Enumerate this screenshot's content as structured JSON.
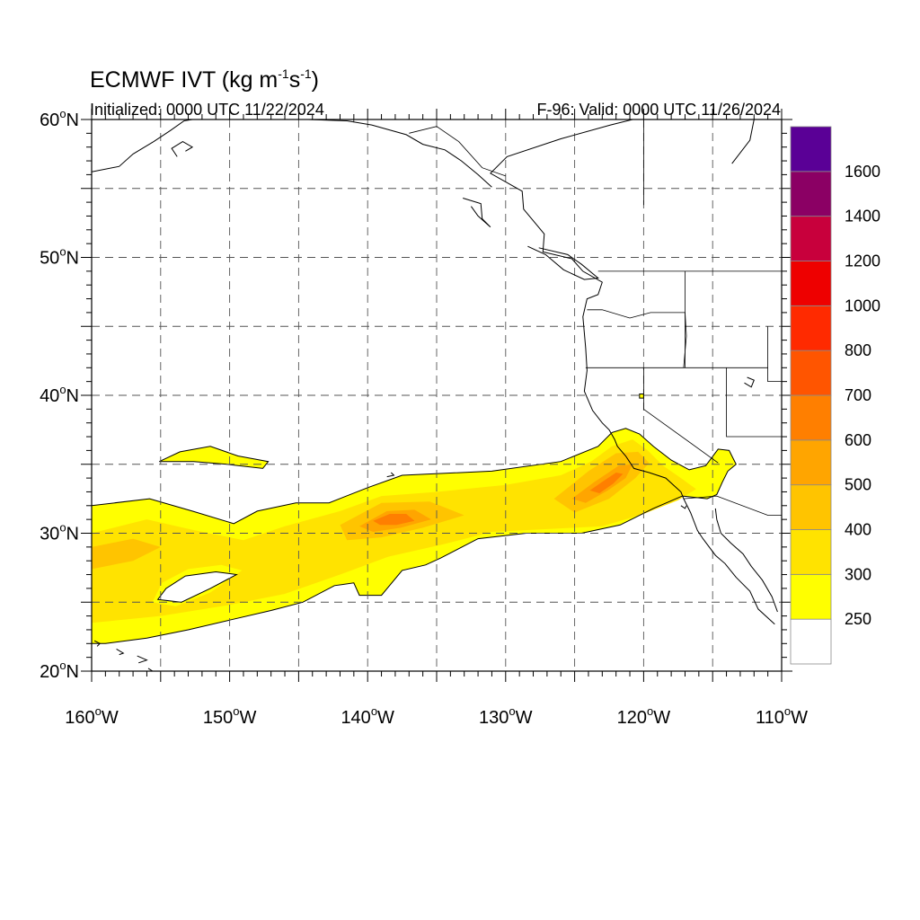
{
  "title": {
    "main": "ECMWF IVT (kg m",
    "exp1": "-1",
    "mid": "s",
    "exp2": "-1",
    "end": ")"
  },
  "initialized": "Initialized: 0000 UTC 11/22/2024",
  "valid": "F-96: Valid: 0000 UTC 11/26/2024",
  "map_extent": {
    "lon_min": -160,
    "lon_max": -110,
    "lat_min": 20,
    "lat_max": 60
  },
  "lat_ticks": [
    {
      "lat": 60,
      "label": "60"
    },
    {
      "lat": 50,
      "label": "50"
    },
    {
      "lat": 40,
      "label": "40"
    },
    {
      "lat": 30,
      "label": "30"
    },
    {
      "lat": 20,
      "label": "20"
    }
  ],
  "lon_ticks": [
    {
      "lon": -160,
      "label": "160"
    },
    {
      "lon": -150,
      "label": "150"
    },
    {
      "lon": -140,
      "label": "140"
    },
    {
      "lon": -130,
      "label": "130"
    },
    {
      "lon": -120,
      "label": "120"
    },
    {
      "lon": -110,
      "label": "110"
    }
  ],
  "lat_suffix": "N",
  "lon_suffix": "W",
  "degree": "o",
  "colorbar": {
    "levels": [
      {
        "label": "",
        "color": "#ffffff"
      },
      {
        "label": "250",
        "color": "#ffff00"
      },
      {
        "label": "300",
        "color": "#ffe300"
      },
      {
        "label": "400",
        "color": "#ffc400"
      },
      {
        "label": "500",
        "color": "#ffa500"
      },
      {
        "label": "600",
        "color": "#ff7f00"
      },
      {
        "label": "700",
        "color": "#ff5500"
      },
      {
        "label": "800",
        "color": "#ff2a00"
      },
      {
        "label": "1000",
        "color": "#ee0000"
      },
      {
        "label": "1200",
        "color": "#c8003c"
      },
      {
        "label": "1400",
        "color": "#8b0064"
      },
      {
        "label": "1600",
        "color": "#5a0096"
      }
    ]
  },
  "ivt_field": [
    {
      "level": 250,
      "polygons": [
        [
          [
            -160,
            32
          ],
          [
            -155.8,
            32.5
          ],
          [
            -152.7,
            31.6
          ],
          [
            -149.7,
            30.7
          ],
          [
            -148,
            31.6
          ],
          [
            -145.2,
            32.2
          ],
          [
            -142.8,
            32.2
          ],
          [
            -140,
            33.3
          ],
          [
            -137.5,
            34.2
          ],
          [
            -131,
            34.5
          ],
          [
            -126,
            35.2
          ],
          [
            -123.3,
            36.3
          ],
          [
            -122.3,
            37.3
          ],
          [
            -121.3,
            37.6
          ],
          [
            -120.3,
            37.2
          ],
          [
            -119.3,
            36.3
          ],
          [
            -118,
            35.3
          ],
          [
            -116.7,
            34.6
          ],
          [
            -115.5,
            34.9
          ],
          [
            -114.6,
            36.1
          ],
          [
            -113.8,
            36.0
          ],
          [
            -113.3,
            35.0
          ],
          [
            -113.9,
            34.5
          ],
          [
            -114.3,
            33.7
          ],
          [
            -114.7,
            32.8
          ],
          [
            -115.4,
            32.5
          ],
          [
            -117.2,
            32.7
          ],
          [
            -119.3,
            31.8
          ],
          [
            -121.7,
            30.6
          ],
          [
            -124.5,
            30
          ],
          [
            -128.5,
            30
          ],
          [
            -132,
            29.6
          ],
          [
            -134.7,
            28.2
          ],
          [
            -135.8,
            27.7
          ],
          [
            -137.5,
            27.3
          ],
          [
            -138.5,
            26.1
          ],
          [
            -139,
            25.5
          ],
          [
            -140.6,
            25.5
          ],
          [
            -141,
            26.4
          ],
          [
            -142.4,
            26.2
          ],
          [
            -144.7,
            25.0
          ],
          [
            -147,
            24.4
          ],
          [
            -150,
            23.7
          ],
          [
            -153,
            23.0
          ],
          [
            -156,
            22.4
          ],
          [
            -159,
            22
          ],
          [
            -160,
            22
          ]
        ],
        [
          [
            -155.1,
            35.2
          ],
          [
            -153.6,
            35.9
          ],
          [
            -151.4,
            36.3
          ],
          [
            -149.4,
            35.6
          ],
          [
            -147.2,
            35.2
          ],
          [
            -147.6,
            34.7
          ],
          [
            -150.2,
            35.0
          ],
          [
            -152.6,
            35.2
          ]
        ],
        [
          [
            -120.3,
            40.1
          ],
          [
            -120.0,
            40.1
          ],
          [
            -120.0,
            39.8
          ],
          [
            -120.3,
            39.8
          ]
        ]
      ],
      "holes": [
        [
          [
            -154.6,
            26.0
          ],
          [
            -153.2,
            26.9
          ],
          [
            -151.0,
            27.2
          ],
          [
            -149.5,
            27.0
          ],
          [
            -151.4,
            26.0
          ],
          [
            -153.5,
            25.0
          ],
          [
            -155.2,
            25.2
          ]
        ]
      ]
    },
    {
      "level": 300,
      "polygons": [
        [
          [
            -160,
            30
          ],
          [
            -156,
            31
          ],
          [
            -152.5,
            30.2
          ],
          [
            -149,
            29.5
          ],
          [
            -146,
            30.5
          ],
          [
            -142,
            31.6
          ],
          [
            -139,
            32.7
          ],
          [
            -135,
            33
          ],
          [
            -130,
            33.5
          ],
          [
            -126,
            34.2
          ],
          [
            -123.8,
            35.2
          ],
          [
            -122.3,
            36.3
          ],
          [
            -120.8,
            36.8
          ],
          [
            -119.7,
            36
          ],
          [
            -118.6,
            34.9
          ],
          [
            -117.3,
            34.0
          ],
          [
            -116.2,
            33.2
          ],
          [
            -117.5,
            32.4
          ],
          [
            -120,
            31.4
          ],
          [
            -123,
            30.5
          ],
          [
            -127,
            30.3
          ],
          [
            -131,
            30.1
          ],
          [
            -134.5,
            29.2
          ],
          [
            -138.5,
            28.3
          ],
          [
            -142,
            27.0
          ],
          [
            -146,
            25.6
          ],
          [
            -150,
            24.8
          ],
          [
            -155,
            24.0
          ],
          [
            -160,
            23.5
          ]
        ]
      ],
      "holes": [
        [
          [
            -154.9,
            26.4
          ],
          [
            -153.0,
            27.4
          ],
          [
            -150.6,
            27.7
          ],
          [
            -149.1,
            27.3
          ],
          [
            -151.4,
            25.7
          ],
          [
            -153.9,
            24.7
          ],
          [
            -155.6,
            25.0
          ]
        ]
      ]
    },
    {
      "level": 400,
      "polygons": [
        [
          [
            -160,
            29
          ],
          [
            -157,
            29.6
          ],
          [
            -155,
            29
          ],
          [
            -157,
            28
          ],
          [
            -160,
            27.4
          ]
        ],
        [
          [
            -142,
            30.6
          ],
          [
            -139,
            32.2
          ],
          [
            -135.5,
            32.3
          ],
          [
            -133,
            31.3
          ],
          [
            -136,
            30.4
          ],
          [
            -139,
            29.7
          ],
          [
            -141.5,
            29.5
          ]
        ],
        [
          [
            -126.5,
            32.5
          ],
          [
            -124,
            34.5
          ],
          [
            -122,
            35.8
          ],
          [
            -120.4,
            35.9
          ],
          [
            -119.6,
            35.1
          ],
          [
            -120.6,
            34.0
          ],
          [
            -122.5,
            32.5
          ],
          [
            -125,
            31.5
          ]
        ]
      ],
      "holes": []
    },
    {
      "level": 500,
      "polygons": [
        [
          [
            -140.6,
            30.5
          ],
          [
            -138.6,
            31.6
          ],
          [
            -136.6,
            31.7
          ],
          [
            -135.4,
            31.0
          ],
          [
            -137.6,
            30.4
          ],
          [
            -139.6,
            30.1
          ]
        ],
        [
          [
            -125.2,
            32.5
          ],
          [
            -123.6,
            33.7
          ],
          [
            -121.8,
            34.9
          ],
          [
            -120.8,
            35.0
          ],
          [
            -121.3,
            34.0
          ],
          [
            -122.6,
            33.1
          ],
          [
            -124.2,
            32.2
          ]
        ]
      ],
      "holes": []
    },
    {
      "level": 600,
      "polygons": [
        [
          [
            -139.6,
            30.9
          ],
          [
            -138.4,
            31.4
          ],
          [
            -137.2,
            31.4
          ],
          [
            -136.6,
            30.9
          ],
          [
            -137.9,
            30.6
          ],
          [
            -139.1,
            30.6
          ]
        ],
        [
          [
            -123.9,
            33.1
          ],
          [
            -122.9,
            33.8
          ],
          [
            -122.0,
            34.4
          ],
          [
            -121.5,
            34.3
          ],
          [
            -122.2,
            33.6
          ],
          [
            -123.2,
            32.9
          ]
        ]
      ],
      "holes": []
    }
  ],
  "coastlines": [
    [
      [
        -120.8,
        60
      ],
      [
        -122.4,
        59.6
      ],
      [
        -126,
        58.6
      ],
      [
        -129.9,
        57.3
      ],
      [
        -131.1,
        56.1
      ],
      [
        -128.8,
        54.8
      ],
      [
        -128.7,
        53.5
      ],
      [
        -127.2,
        51.7
      ],
      [
        -127.3,
        50.4
      ],
      [
        -125.2,
        49.9
      ],
      [
        -124.4,
        49.0
      ],
      [
        -123,
        48.2
      ],
      [
        -123.3,
        47.3
      ],
      [
        -124.1,
        47.0
      ],
      [
        -124.4,
        45.7
      ],
      [
        -124.2,
        43.4
      ],
      [
        -124.1,
        41.8
      ],
      [
        -124.3,
        40.3
      ],
      [
        -123.7,
        38.9
      ],
      [
        -123,
        38
      ],
      [
        -122.5,
        37.5
      ],
      [
        -122.1,
        36.8
      ],
      [
        -121.9,
        36.3
      ],
      [
        -121.3,
        35.6
      ],
      [
        -120.7,
        34.7
      ],
      [
        -119.6,
        34.4
      ],
      [
        -118.4,
        34.0
      ],
      [
        -117.3,
        33.0
      ],
      [
        -117.1,
        32.5
      ],
      [
        -116.6,
        31.5
      ],
      [
        -116.1,
        30.2
      ],
      [
        -115.7,
        29.6
      ],
      [
        -114.8,
        28.4
      ],
      [
        -114.1,
        27.8
      ],
      [
        -113.3,
        26.8
      ],
      [
        -112.3,
        25.8
      ],
      [
        -111.7,
        24.5
      ],
      [
        -110.5,
        23.4
      ]
    ],
    [
      [
        -114.8,
        31.8
      ],
      [
        -114.7,
        31.0
      ],
      [
        -114.4,
        30.0
      ],
      [
        -113.7,
        29.3
      ],
      [
        -112.8,
        28.5
      ],
      [
        -112.2,
        27.6
      ],
      [
        -111.4,
        26.6
      ],
      [
        -110.7,
        25.4
      ],
      [
        -110.3,
        24.3
      ]
    ],
    [
      [
        -144.3,
        60
      ],
      [
        -141.5,
        59.9
      ],
      [
        -139.7,
        59.6
      ],
      [
        -137.2,
        58.9
      ],
      [
        -136,
        58.2
      ],
      [
        -134.4,
        57.8
      ],
      [
        -133.2,
        57.0
      ],
      [
        -132.0,
        56.0
      ],
      [
        -131.0,
        55.1
      ]
    ],
    [
      [
        -160,
        56.2
      ],
      [
        -158,
        56.6
      ],
      [
        -157,
        57.5
      ],
      [
        -155.5,
        58.4
      ],
      [
        -154.3,
        59.2
      ],
      [
        -153.3,
        59.9
      ],
      [
        -152.7,
        60
      ]
    ],
    [
      [
        -153.2,
        57.7
      ],
      [
        -152.7,
        58.0
      ],
      [
        -153.4,
        58.4
      ],
      [
        -154.2,
        57.9
      ],
      [
        -153.8,
        57.3
      ]
    ],
    [
      [
        -133.1,
        54.3
      ],
      [
        -131.8,
        53.9
      ],
      [
        -131.7,
        52.8
      ],
      [
        -131.1,
        52.2
      ],
      [
        -132.0,
        53.0
      ],
      [
        -132.5,
        53.7
      ]
    ],
    [
      [
        -128.4,
        50.8
      ],
      [
        -127.1,
        50.2
      ],
      [
        -125.8,
        49.1
      ],
      [
        -124.3,
        48.4
      ],
      [
        -123.3,
        48.5
      ],
      [
        -124.5,
        49.5
      ],
      [
        -125.5,
        50.2
      ],
      [
        -127.6,
        50.7
      ]
    ],
    [
      [
        -112,
        60
      ],
      [
        -112.3,
        58.5
      ],
      [
        -113.6,
        56.8
      ]
    ],
    [
      [
        -138.6,
        34.1
      ],
      [
        -138.1,
        34.2
      ],
      [
        -138.3,
        34.4
      ]
    ],
    [
      [
        -112.5,
        41.3
      ],
      [
        -112.0,
        41.1
      ],
      [
        -112.2,
        40.6
      ],
      [
        -112.7,
        40.9
      ]
    ],
    [
      [
        -117.3,
        32.0
      ],
      [
        -117.0,
        31.8
      ],
      [
        -116.9,
        32.0
      ]
    ],
    [
      [
        -159.8,
        22.2
      ],
      [
        -159.4,
        22.0
      ],
      [
        -159.6,
        21.8
      ]
    ],
    [
      [
        -158.2,
        21.6
      ],
      [
        -157.7,
        21.3
      ],
      [
        -158.0,
        21.2
      ]
    ],
    [
      [
        -156.7,
        21.1
      ],
      [
        -156.0,
        20.8
      ],
      [
        -156.6,
        20.6
      ]
    ],
    [
      [
        -155.9,
        20.2
      ],
      [
        -154.8,
        19.5
      ],
      [
        -155.6,
        19.3
      ]
    ]
  ],
  "borders": [
    [
      [
        -123.3,
        49
      ],
      [
        -95,
        49
      ]
    ],
    [
      [
        -124.1,
        46.2
      ],
      [
        -123,
        46.2
      ],
      [
        -121,
        45.6
      ],
      [
        -119.5,
        46.0
      ],
      [
        -117,
        46.0
      ],
      [
        -116.9,
        44.3
      ],
      [
        -117.1,
        42
      ]
    ],
    [
      [
        -124.2,
        42
      ],
      [
        -111,
        42
      ]
    ],
    [
      [
        -120,
        42
      ],
      [
        -120,
        39
      ],
      [
        -114.6,
        35.1
      ]
    ],
    [
      [
        -117,
        49
      ],
      [
        -117,
        42
      ]
    ],
    [
      [
        -114,
        42
      ],
      [
        -114,
        37.0
      ],
      [
        -110,
        37.0
      ]
    ],
    [
      [
        -111,
        45
      ],
      [
        -111,
        41
      ],
      [
        -110,
        41
      ]
    ],
    [
      [
        -117.1,
        32.5
      ],
      [
        -114.7,
        32.7
      ],
      [
        -111,
        31.3
      ],
      [
        -110,
        31.3
      ]
    ],
    [
      [
        -141,
        60
      ],
      [
        -141,
        59.8
      ]
    ],
    [
      [
        -137,
        59
      ],
      [
        -135,
        59.5
      ],
      [
        -133.4,
        58.4
      ],
      [
        -131.7,
        56.5
      ],
      [
        -130,
        55.9
      ]
    ],
    [
      [
        -120,
        60
      ],
      [
        -120,
        53.8
      ]
    ]
  ]
}
